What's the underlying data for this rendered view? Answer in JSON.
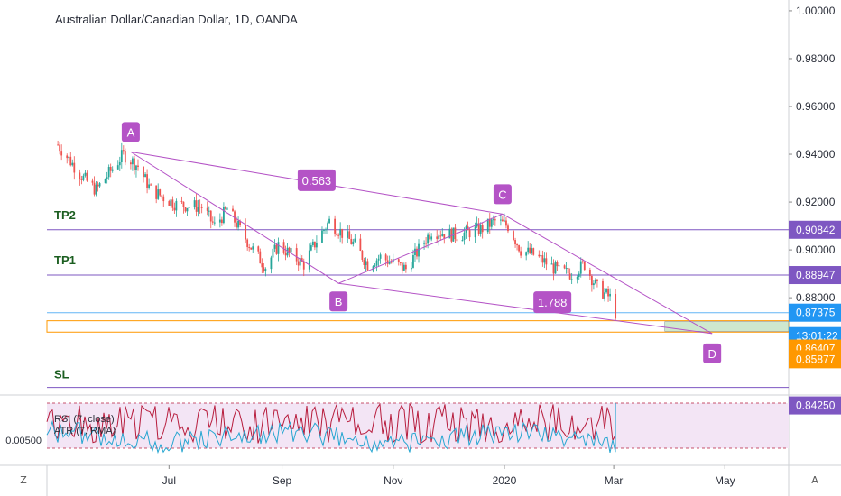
{
  "header": {
    "title": "Australian Dollar/Canadian Dollar, 1D, OANDA"
  },
  "footer": {
    "left_button": "Z",
    "right_button": "A"
  },
  "colors": {
    "up": "#26a69a",
    "down": "#ef5350",
    "pattern": "#b453c6",
    "target_line": "#7e57c2",
    "price_line": "#64b5f6",
    "stop_band": "#ff9800",
    "rsi": "#b71c3c",
    "atr": "#26a6d1"
  },
  "chart_data": {
    "type": "candlestick",
    "title": "Australian Dollar/Canadian Dollar, 1D, OANDA",
    "x_ticks": [
      "Jul",
      "Sep",
      "Nov",
      "2020",
      "Mar",
      "May"
    ],
    "y_ticks": [
      "1.00000",
      "0.98000",
      "0.96000",
      "0.94000",
      "0.92000",
      "0.90000",
      "0.88000"
    ],
    "ylim": [
      0.8425,
      1.0
    ],
    "price_path": [
      [
        "2019-05-01",
        0.944
      ],
      [
        "2019-05-15",
        0.93
      ],
      [
        "2019-05-22",
        0.925
      ],
      [
        "2019-06-06",
        0.94
      ],
      [
        "2019-06-14",
        0.935
      ],
      [
        "2019-06-21",
        0.925
      ],
      [
        "2019-07-05",
        0.919
      ],
      [
        "2019-07-19",
        0.918
      ],
      [
        "2019-07-26",
        0.91
      ],
      [
        "2019-08-02",
        0.917
      ],
      [
        "2019-08-16",
        0.9
      ],
      [
        "2019-08-23",
        0.893
      ],
      [
        "2019-08-30",
        0.902
      ],
      [
        "2019-09-13",
        0.894
      ],
      [
        "2019-09-20",
        0.904
      ],
      [
        "2019-09-27",
        0.912
      ],
      [
        "2019-10-11",
        0.902
      ],
      [
        "2019-10-18",
        0.894
      ],
      [
        "2019-10-25",
        0.897
      ],
      [
        "2019-11-08",
        0.892
      ],
      [
        "2019-11-15",
        0.9
      ],
      [
        "2019-11-22",
        0.908
      ],
      [
        "2019-12-06",
        0.906
      ],
      [
        "2019-12-20",
        0.909
      ],
      [
        "2019-12-27",
        0.912
      ],
      [
        "2020-01-03",
        0.91
      ],
      [
        "2020-01-10",
        0.9
      ],
      [
        "2020-01-17",
        0.898
      ],
      [
        "2020-01-31",
        0.891
      ],
      [
        "2020-02-07",
        0.89
      ],
      [
        "2020-02-14",
        0.894
      ],
      [
        "2020-02-21",
        0.884
      ],
      [
        "2020-02-28",
        0.88
      ],
      [
        "2020-03-02",
        0.8737
      ]
    ],
    "harmonic_pattern": {
      "points": [
        {
          "label": "A",
          "date": "2019-06-10",
          "price": 0.941
        },
        {
          "label": "B",
          "date": "2019-10-02",
          "price": 0.886
        },
        {
          "label": "C",
          "date": "2019-12-31",
          "price": 0.915
        },
        {
          "label": "D",
          "date": "2020-04-24",
          "price": 0.865
        }
      ],
      "ratios": [
        "0.563",
        "1.788"
      ]
    },
    "levels": [
      {
        "label": "TP2",
        "price": "0.90842"
      },
      {
        "label": "TP1",
        "price": "0.88947"
      },
      {
        "label": "SL",
        "price": "0.84250"
      }
    ],
    "price_tags": [
      {
        "text": "1.00000",
        "kind": "tick"
      },
      {
        "text": "0.98000",
        "kind": "tick"
      },
      {
        "text": "0.96000",
        "kind": "tick"
      },
      {
        "text": "0.94000",
        "kind": "tick"
      },
      {
        "text": "0.92000",
        "kind": "tick"
      },
      {
        "text": "0.90000",
        "kind": "tick"
      },
      {
        "text": "0.88000",
        "kind": "tick"
      },
      {
        "text": "0.90842",
        "kind": "tp"
      },
      {
        "text": "0.88947",
        "kind": "tp"
      },
      {
        "text": "0.87375",
        "kind": "current"
      },
      {
        "text": "13:01:22",
        "kind": "countdown"
      },
      {
        "text": "0.86407",
        "kind": "zone"
      },
      {
        "text": "0.85877",
        "kind": "zone"
      },
      {
        "text": "0.84250",
        "kind": "sl"
      }
    ],
    "target_zone": {
      "top": 0.87,
      "bottom": 0.866
    },
    "indicator": {
      "labels": [
        "RSI (7, close)",
        "ATR (7, RMA)"
      ],
      "axis_value": "0.00500"
    }
  }
}
